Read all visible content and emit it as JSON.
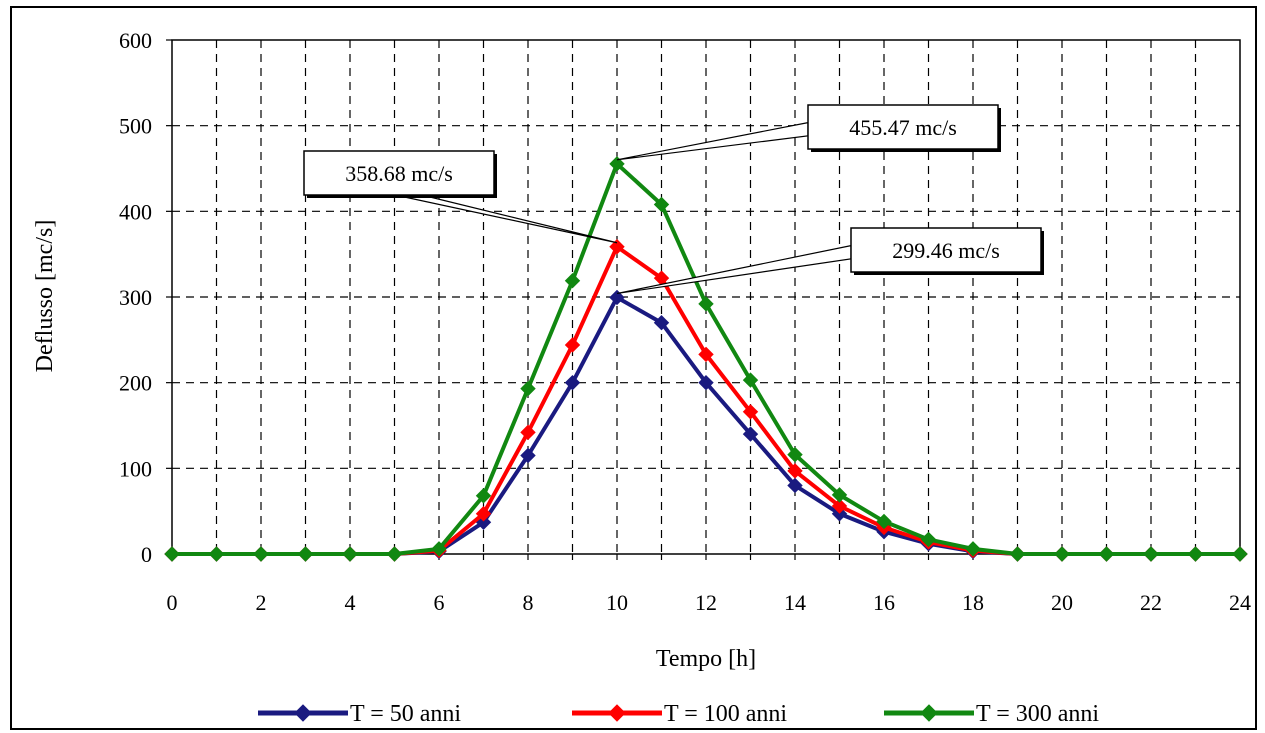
{
  "chart_data": {
    "type": "line",
    "title": "",
    "xlabel": "Tempo [h]",
    "ylabel": "Deflusso [mc/s]",
    "xlim": [
      0,
      24
    ],
    "ylim": [
      0,
      600
    ],
    "x_ticks": [
      0,
      2,
      4,
      6,
      8,
      10,
      12,
      14,
      16,
      18,
      20,
      22,
      24
    ],
    "y_ticks": [
      0,
      100,
      200,
      300,
      400,
      500,
      600
    ],
    "grid": true,
    "legend_position": "bottom",
    "x": [
      0,
      1,
      2,
      3,
      4,
      5,
      6,
      7,
      8,
      9,
      10,
      11,
      12,
      13,
      14,
      15,
      16,
      17,
      18,
      19,
      20,
      21,
      22,
      23,
      24
    ],
    "series": [
      {
        "name": "T = 50 anni",
        "color": "#1a1a80",
        "values": [
          0,
          0,
          0,
          0,
          0,
          0,
          3,
          37,
          115,
          200,
          299.46,
          270,
          200,
          140,
          80,
          47,
          26,
          12,
          3,
          0,
          0,
          0,
          0,
          0,
          0
        ]
      },
      {
        "name": "T = 100 anni",
        "color": "#ff0000",
        "values": [
          0,
          0,
          0,
          0,
          0,
          0,
          4,
          47,
          142,
          244,
          358.68,
          322,
          233,
          166,
          97,
          56,
          31,
          14,
          4,
          0,
          0,
          0,
          0,
          0,
          0
        ]
      },
      {
        "name": "T = 300 anni",
        "color": "#118811",
        "values": [
          0,
          0,
          0,
          0,
          0,
          0,
          6,
          68,
          193,
          319,
          455.47,
          408,
          292,
          203,
          116,
          69,
          38,
          17,
          6,
          0,
          0,
          0,
          0,
          0,
          0
        ]
      }
    ],
    "annotations": [
      {
        "text": "455.47 mc/s",
        "series": 2,
        "x": 10,
        "y": 455.47
      },
      {
        "text": "358.68 mc/s",
        "series": 1,
        "x": 10,
        "y": 358.68
      },
      {
        "text": "299.46 mc/s",
        "series": 0,
        "x": 10,
        "y": 299.46
      }
    ]
  }
}
